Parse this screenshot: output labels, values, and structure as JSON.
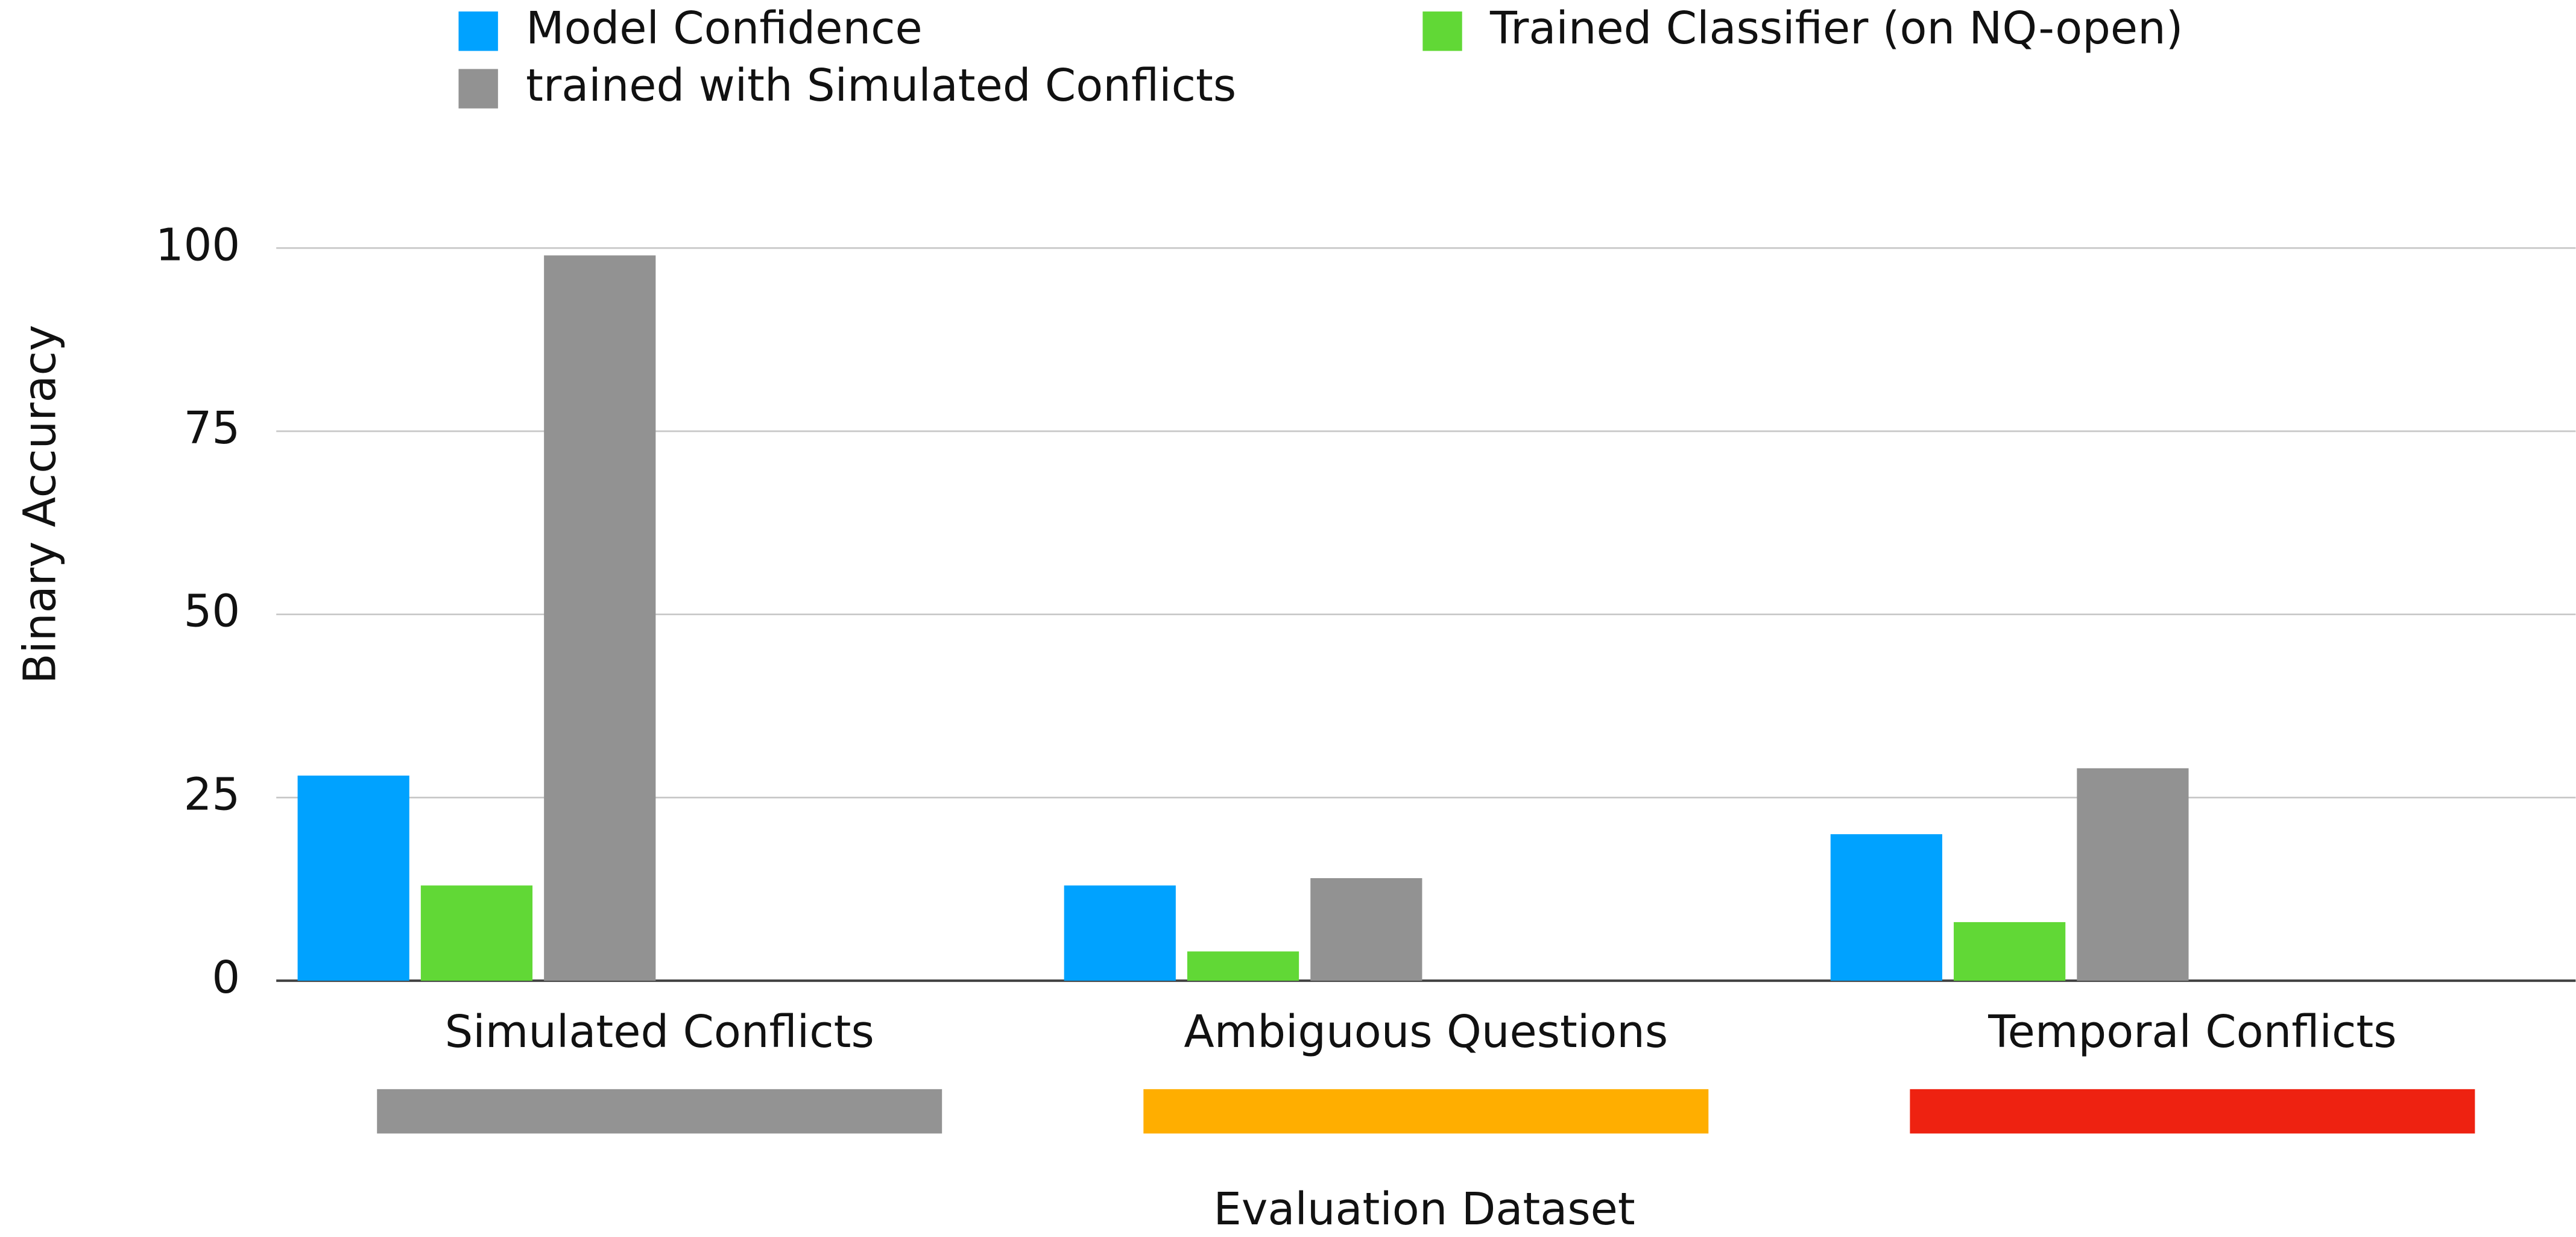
{
  "chart_data": {
    "type": "bar",
    "categories": [
      "Simulated Conflicts",
      "Ambiguous Questions",
      "Temporal Conflicts"
    ],
    "category_colors": [
      "#939393",
      "#ffae00",
      "#ee2211"
    ],
    "series": [
      {
        "name": "Model Confidence",
        "color": "#00a2ff",
        "values": [
          28,
          13,
          20
        ]
      },
      {
        "name": "Trained Classifier (on NQ-open)",
        "color": "#61d836",
        "values": [
          13,
          4,
          8
        ]
      },
      {
        "name": "trained with Simulated Conflicts",
        "color": "#929292",
        "values": [
          99,
          14,
          29
        ]
      }
    ],
    "ylabel": "Binary Accuracy",
    "xlabel": "Evaluation Dataset",
    "ylim": [
      0,
      100
    ],
    "yticks": [
      0,
      25,
      50,
      75,
      100
    ],
    "grid": true,
    "legend": "top"
  }
}
